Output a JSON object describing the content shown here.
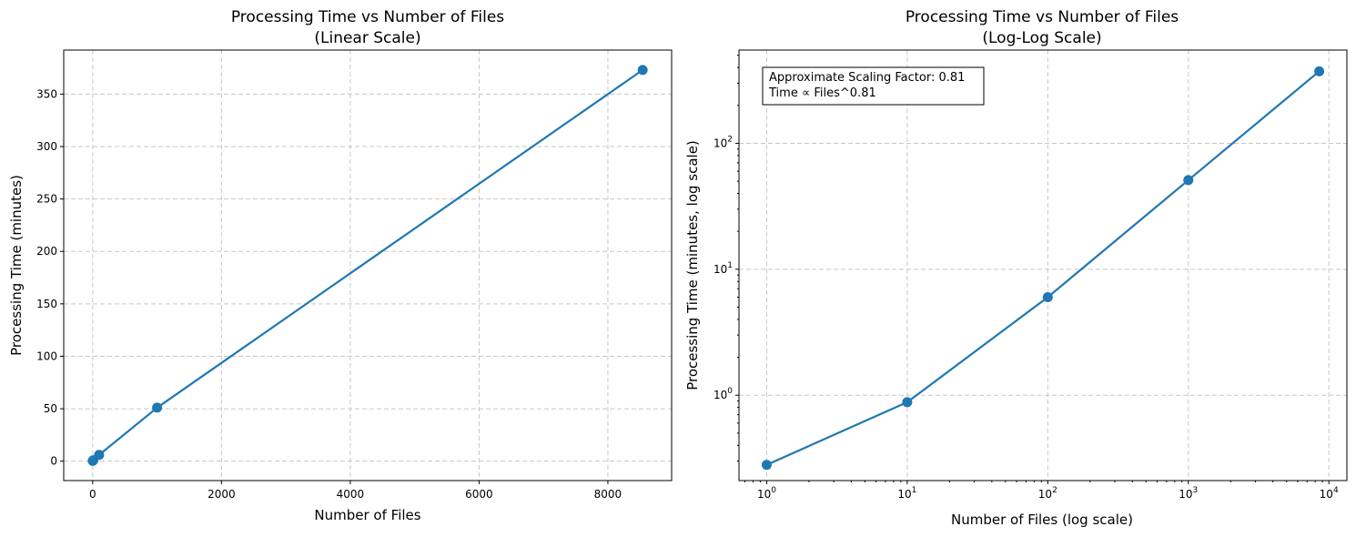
{
  "chart_data": [
    {
      "type": "line",
      "title_line1": "Processing Time vs Number of Files",
      "title_line2": "(Linear Scale)",
      "xlabel": "Number of Files",
      "ylabel": "Processing Time (minutes)",
      "xlim": [
        -450,
        8990
      ],
      "ylim": [
        -18.5,
        392
      ],
      "xticks": [
        0,
        2000,
        4000,
        6000,
        8000
      ],
      "yticks": [
        0,
        50,
        100,
        150,
        200,
        250,
        300,
        350
      ],
      "xticklabels": [
        "0",
        "2000",
        "4000",
        "6000",
        "8000"
      ],
      "yticklabels": [
        "0",
        "50",
        "100",
        "150",
        "200",
        "250",
        "300",
        "350"
      ],
      "grid": true,
      "color": "#1f77b4",
      "x": [
        1,
        10,
        100,
        1000,
        8540
      ],
      "y": [
        0.28,
        0.88,
        6.0,
        51,
        373
      ]
    },
    {
      "type": "line",
      "title_line1": "Processing Time vs Number of Files",
      "title_line2": "(Log-Log Scale)",
      "xlabel": "Number of Files (log scale)",
      "ylabel": "Processing Time (minutes, log scale)",
      "xscale": "log",
      "yscale": "log",
      "xlim": [
        0.635,
        13440
      ],
      "ylim": [
        0.21,
        550
      ],
      "xticks": [
        1,
        10,
        100,
        1000,
        10000
      ],
      "yticks": [
        1,
        10,
        100
      ],
      "xticklabels": [
        {
          "base": "10",
          "exp": "0"
        },
        {
          "base": "10",
          "exp": "1"
        },
        {
          "base": "10",
          "exp": "2"
        },
        {
          "base": "10",
          "exp": "3"
        },
        {
          "base": "10",
          "exp": "4"
        }
      ],
      "yticklabels": [
        {
          "base": "10",
          "exp": "0"
        },
        {
          "base": "10",
          "exp": "1"
        },
        {
          "base": "10",
          "exp": "2"
        }
      ],
      "grid": true,
      "color": "#1f77b4",
      "x": [
        1,
        10,
        100,
        1000,
        8540
      ],
      "y": [
        0.28,
        0.88,
        6.0,
        51,
        373
      ],
      "annotation": [
        "Approximate Scaling Factor: 0.81",
        "Time ∝ Files^0.81"
      ],
      "annotation_position": "top-left"
    }
  ]
}
